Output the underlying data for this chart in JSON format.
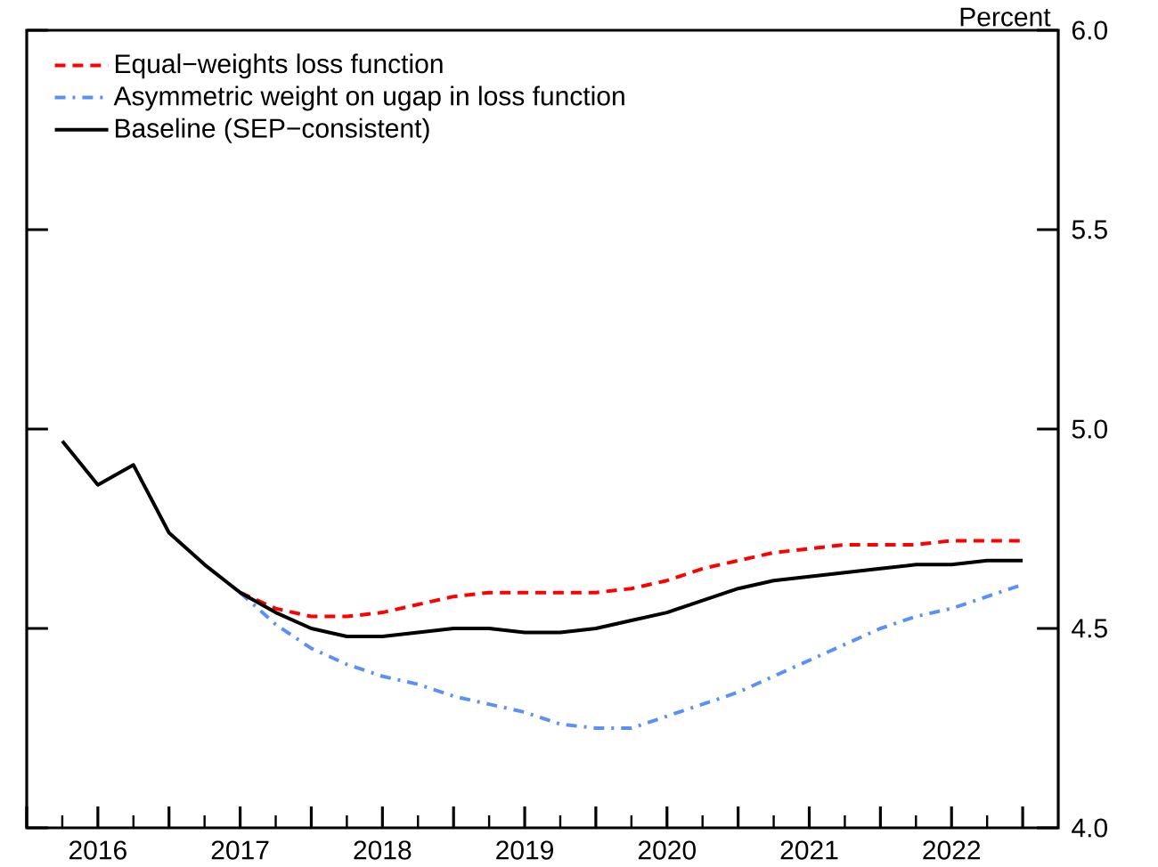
{
  "chart_data": {
    "type": "line",
    "ylabel": "Percent",
    "x": [
      2016.25,
      2016.5,
      2016.75,
      2017.0,
      2017.25,
      2017.5,
      2017.75,
      2018.0,
      2018.25,
      2018.5,
      2018.75,
      2019.0,
      2019.25,
      2019.5,
      2019.75,
      2020.0,
      2020.25,
      2020.5,
      2020.75,
      2021.0,
      2021.25,
      2021.5,
      2021.75,
      2022.0,
      2022.25,
      2022.5,
      2022.75,
      2023.0
    ],
    "series": [
      {
        "name": "Equal−weights loss function",
        "color": "#ff0000",
        "line_style": "dashed",
        "values": [
          null,
          null,
          null,
          null,
          null,
          4.59,
          4.55,
          4.53,
          4.53,
          4.54,
          4.56,
          4.58,
          4.59,
          4.59,
          4.59,
          4.59,
          4.6,
          4.62,
          4.65,
          4.67,
          4.69,
          4.7,
          4.71,
          4.71,
          4.71,
          4.72,
          4.72,
          4.72
        ]
      },
      {
        "name": "Asymmetric weight on ugap in loss function",
        "color": "#5b8ff9",
        "line_style": "dashdot",
        "values": [
          null,
          null,
          null,
          null,
          null,
          4.59,
          4.51,
          4.45,
          4.41,
          4.38,
          4.36,
          4.33,
          4.31,
          4.29,
          4.26,
          4.25,
          4.25,
          4.28,
          4.31,
          4.34,
          4.38,
          4.42,
          4.46,
          4.5,
          4.53,
          4.55,
          4.58,
          4.61
        ]
      },
      {
        "name": "Baseline (SEP−consistent)",
        "color": "#000000",
        "line_style": "solid",
        "values": [
          4.97,
          4.86,
          4.91,
          4.74,
          4.66,
          4.59,
          4.54,
          4.5,
          4.48,
          4.48,
          4.49,
          4.5,
          4.5,
          4.49,
          4.49,
          4.5,
          4.52,
          4.54,
          4.57,
          4.6,
          4.62,
          4.63,
          4.64,
          4.65,
          4.66,
          4.66,
          4.67,
          4.67
        ]
      }
    ],
    "xlim": [
      2016,
      2023.25
    ],
    "xticks": [
      {
        "value": 2016,
        "label": null
      },
      {
        "value": 2016.5,
        "label": "2016"
      },
      {
        "value": 2017,
        "label": null
      },
      {
        "value": 2017.5,
        "label": "2017"
      },
      {
        "value": 2018,
        "label": null
      },
      {
        "value": 2018.5,
        "label": "2018"
      },
      {
        "value": 2019,
        "label": null
      },
      {
        "value": 2019.5,
        "label": "2019"
      },
      {
        "value": 2020,
        "label": null
      },
      {
        "value": 2020.5,
        "label": "2020"
      },
      {
        "value": 2021,
        "label": null
      },
      {
        "value": 2021.5,
        "label": "2021"
      },
      {
        "value": 2022,
        "label": null
      },
      {
        "value": 2022.5,
        "label": "2022"
      },
      {
        "value": 2023,
        "label": null
      }
    ],
    "ylim": [
      4.0,
      6.0
    ],
    "yticks": [
      {
        "value": 4.0,
        "label": "4.0"
      },
      {
        "value": 4.5,
        "label": "4.5"
      },
      {
        "value": 5.0,
        "label": "5.0"
      },
      {
        "value": 5.5,
        "label": "5.5"
      },
      {
        "value": 6.0,
        "label": "6.0"
      }
    ],
    "legend": "top left",
    "grid": false
  }
}
